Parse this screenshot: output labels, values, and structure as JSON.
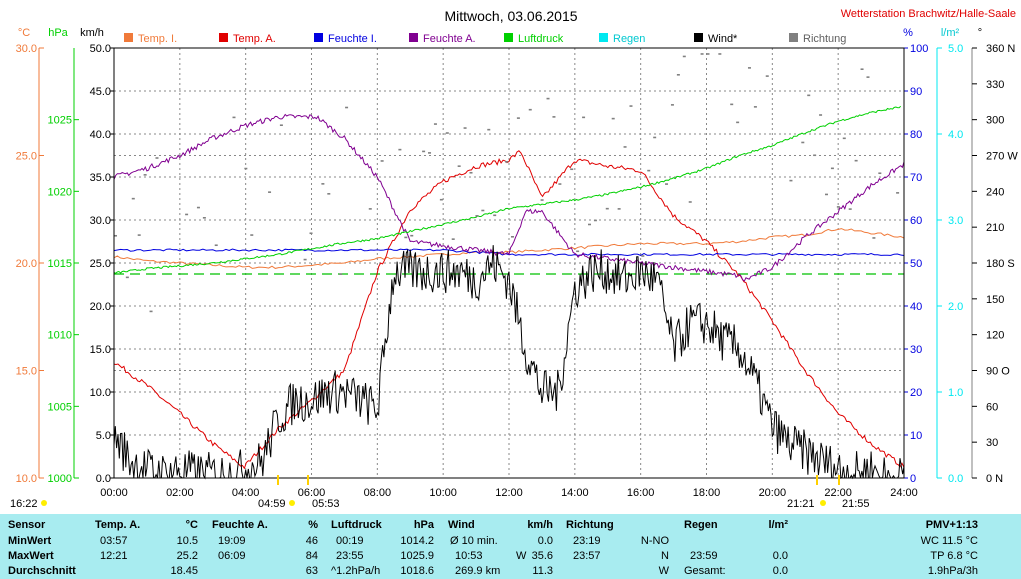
{
  "title": "Mittwoch, 03.06.2015",
  "station": "Wetterstation Brachwitz/Halle-Saale",
  "colors": {
    "temp_in": "#f07a3a",
    "temp_out": "#e00000",
    "hum_in": "#0000e0",
    "hum_out": "#800090",
    "pressure": "#00d000",
    "rain": "#00e8f0",
    "wind": "#000000",
    "direction": "#808080",
    "table_bg": "#a8ecf0"
  },
  "left_units": {
    "celsius": "°C",
    "hpa": "hPa",
    "kmh": "km/h"
  },
  "right_units": {
    "percent": "%",
    "rain": "l/m²",
    "degree": "°"
  },
  "axes": {
    "celsius_ticks": [
      "30.0",
      "25.0",
      "20.0",
      "15.0",
      "10.0"
    ],
    "hpa_ticks": [
      "1025",
      "1020",
      "1015",
      "1010",
      "1005",
      "1000"
    ],
    "kmh_ticks": [
      "50.0",
      "45.0",
      "40.0",
      "35.0",
      "30.0",
      "25.0",
      "20.0",
      "15.0",
      "10.0",
      "5.0",
      "0.0"
    ],
    "percent_ticks": [
      "100",
      "90",
      "80",
      "70",
      "60",
      "50",
      "40",
      "30",
      "20",
      "10",
      "0"
    ],
    "rain_ticks": [
      "5.0",
      "4.0",
      "3.0",
      "2.0",
      "1.0",
      "0.0"
    ],
    "degree_ticks": [
      "360 N",
      "330",
      "300",
      "270 W",
      "240",
      "210",
      "180 S",
      "150",
      "120",
      "90 O",
      "60",
      "30",
      "0 N"
    ],
    "time_ticks": [
      "00:00",
      "02:00",
      "04:00",
      "06:00",
      "08:00",
      "10:00",
      "12:00",
      "14:00",
      "16:00",
      "18:00",
      "20:00",
      "22:00",
      "24:00"
    ]
  },
  "sun": {
    "left": "16:22",
    "sunrise": "04:59",
    "civil_dawn": "05:53",
    "sunset": "21:21",
    "civil_dusk": "21:55"
  },
  "chart_data": {
    "type": "line",
    "title": "Mittwoch, 03.06.2015",
    "x_unit": "hours",
    "xlim": [
      0,
      24
    ],
    "legend_placement": "top",
    "grid": true,
    "series": [
      {
        "name": "Temp. I.",
        "axis": "celsius",
        "ylim": [
          10,
          30
        ],
        "x": [
          0,
          1,
          2,
          3,
          4,
          5,
          6,
          7,
          8,
          9,
          10,
          11,
          12,
          13,
          14,
          15,
          16,
          17,
          18,
          19,
          20,
          21,
          22,
          23,
          24
        ],
        "y": [
          20.3,
          20.1,
          20.0,
          19.9,
          19.8,
          19.8,
          19.9,
          20.0,
          20.2,
          20.3,
          20.4,
          20.5,
          20.5,
          20.6,
          20.7,
          20.8,
          20.9,
          20.9,
          20.9,
          21.0,
          21.2,
          21.3,
          21.6,
          21.4,
          21.2
        ]
      },
      {
        "name": "Temp. A.",
        "axis": "celsius",
        "ylim": [
          10,
          30
        ],
        "x": [
          0,
          1,
          2,
          3,
          3.95,
          5,
          6,
          7,
          8,
          9,
          10,
          11,
          12,
          12.35,
          13,
          14,
          15,
          16,
          17,
          18,
          19,
          20,
          21,
          22,
          23,
          24
        ],
        "y": [
          15.4,
          14.3,
          13.0,
          11.6,
          10.5,
          12.3,
          13.6,
          15.0,
          19.6,
          22.5,
          23.8,
          24.5,
          24.8,
          25.2,
          23.0,
          24.8,
          24.5,
          24.3,
          22.2,
          21.0,
          19.4,
          17.3,
          15.0,
          13.0,
          11.6,
          10.5
        ]
      },
      {
        "name": "Feuchte I.",
        "axis": "percent",
        "ylim": [
          0,
          100
        ],
        "x": [
          0,
          2,
          4,
          6,
          8,
          10,
          12,
          14,
          16,
          18,
          20,
          22,
          24
        ],
        "y": [
          53,
          53,
          53,
          53,
          53,
          53,
          52,
          52,
          52,
          52,
          52,
          52,
          52
        ]
      },
      {
        "name": "Feuchte A.",
        "axis": "percent",
        "ylim": [
          0,
          100
        ],
        "x": [
          0,
          1,
          2,
          3,
          4,
          5,
          6,
          6.15,
          7,
          8,
          9,
          10,
          11,
          12,
          12.5,
          13,
          14,
          15,
          16,
          17,
          18,
          19,
          19.15,
          20,
          21,
          22,
          23,
          24
        ],
        "y": [
          70,
          72,
          75,
          79,
          82,
          84,
          84,
          84,
          79,
          70,
          55,
          54,
          53,
          52,
          62,
          62,
          52,
          51,
          50,
          49,
          48,
          47,
          46,
          49,
          56,
          62,
          68,
          73
        ]
      },
      {
        "name": "Luftdruck",
        "axis": "hpa",
        "ylim": [
          1000,
          1030
        ],
        "x": [
          0,
          1,
          2,
          3,
          4,
          5,
          6,
          7,
          8,
          9,
          10,
          11,
          12,
          13,
          14,
          15,
          16,
          17,
          18,
          19,
          20,
          21,
          22,
          23,
          23.92
        ],
        "y": [
          1014.3,
          1014.6,
          1014.8,
          1015.0,
          1015.3,
          1015.6,
          1016.0,
          1016.4,
          1016.7,
          1017.2,
          1017.7,
          1018.2,
          1018.8,
          1019.1,
          1019.4,
          1019.8,
          1020.3,
          1020.9,
          1021.6,
          1022.5,
          1023.2,
          1024.1,
          1024.9,
          1025.5,
          1025.9
        ]
      },
      {
        "name": "Regen",
        "axis": "rain",
        "ylim": [
          0,
          5
        ],
        "x": [
          0,
          24
        ],
        "y": [
          0,
          0
        ]
      },
      {
        "name": "Wind*",
        "axis": "kmh",
        "ylim": [
          0,
          50
        ],
        "x": [
          0,
          0.5,
          1,
          1.5,
          2,
          2.5,
          3,
          3.5,
          4,
          4.5,
          5,
          5.5,
          6,
          6.5,
          7,
          7.5,
          8,
          8.5,
          9,
          9.5,
          10,
          10.5,
          11,
          11.5,
          12,
          12.5,
          13,
          13.5,
          14,
          14.5,
          15,
          15.5,
          16,
          16.5,
          17,
          17.5,
          18,
          18.5,
          19,
          19.5,
          20,
          20.5,
          21,
          21.5,
          22,
          22.5,
          23,
          23.5,
          24
        ],
        "y": [
          5,
          2,
          1,
          0.5,
          1,
          0.5,
          0.5,
          0.5,
          1,
          2,
          7,
          9,
          9,
          10,
          10,
          9,
          8,
          24,
          24,
          24,
          24,
          24,
          23,
          25,
          23,
          15,
          10,
          10,
          22,
          24,
          24,
          23,
          24,
          23,
          15,
          18,
          18,
          16,
          15,
          11,
          6,
          4,
          3,
          2,
          1,
          0.5,
          1,
          0,
          0
        ]
      },
      {
        "name": "Richtung",
        "axis": "degree",
        "ylim": [
          0,
          360
        ],
        "x": [
          0,
          1,
          2,
          3,
          4,
          5,
          6,
          7,
          8,
          9,
          10,
          11,
          12,
          13,
          14,
          15,
          16,
          17,
          18,
          19,
          20,
          21,
          22,
          23
        ],
        "y": [
          180,
          190,
          225,
          240,
          250,
          260,
          230,
          240,
          255,
          255,
          260,
          265,
          265,
          255,
          260,
          255,
          255,
          270,
          330,
          320,
          315,
          300,
          285,
          270
        ]
      }
    ]
  },
  "stats": {
    "headers": {
      "sensor": "Sensor",
      "temp": "Temp. A.",
      "temp_unit": "°C",
      "hum": "Feuchte A.",
      "hum_unit": "%",
      "press": "Luftdruck",
      "press_unit": "hPa",
      "wind": "Wind",
      "wind_unit": "km/h",
      "dir": "Richtung",
      "rain": "Regen",
      "rain_unit": "l/m²",
      "pmv": "PMV+1:13"
    },
    "rows": [
      {
        "label": "MinWert",
        "temp_time": "03:57",
        "temp_val": "10.5",
        "hum_time": "19:09",
        "hum_val": "46",
        "press_time": "00:19",
        "press_val": "1014.2",
        "wind_time": "Ø 10 min.",
        "wind_dir": "",
        "wind_val": "0.0",
        "dir_time": "23:19",
        "dir_val": "N-NO",
        "rain_time": "",
        "rain_val": "",
        "pmv": "WC 11.5 °C"
      },
      {
        "label": "MaxWert",
        "temp_time": "12:21",
        "temp_val": "25.2",
        "hum_time": "06:09",
        "hum_val": "84",
        "press_time": "23:55",
        "press_val": "1025.9",
        "wind_time": "10:53",
        "wind_dir": "W",
        "wind_val": "35.6",
        "dir_time": "23:57",
        "dir_val": "N",
        "rain_time": "23:59",
        "rain_val": "0.0",
        "pmv": "TP 6.8 °C"
      },
      {
        "label": "Durchschnitt",
        "temp_time": "",
        "temp_val": "18.45",
        "hum_time": "",
        "hum_val": "63",
        "press_time": "^1.2hPa/h",
        "press_val": "1018.6",
        "wind_time": "269.9 km",
        "wind_dir": "",
        "wind_val": "11.3",
        "dir_time": "",
        "dir_val": "W",
        "rain_time": "Gesamt:",
        "rain_val": "0.0",
        "pmv": "1.9hPa/3h"
      }
    ]
  }
}
